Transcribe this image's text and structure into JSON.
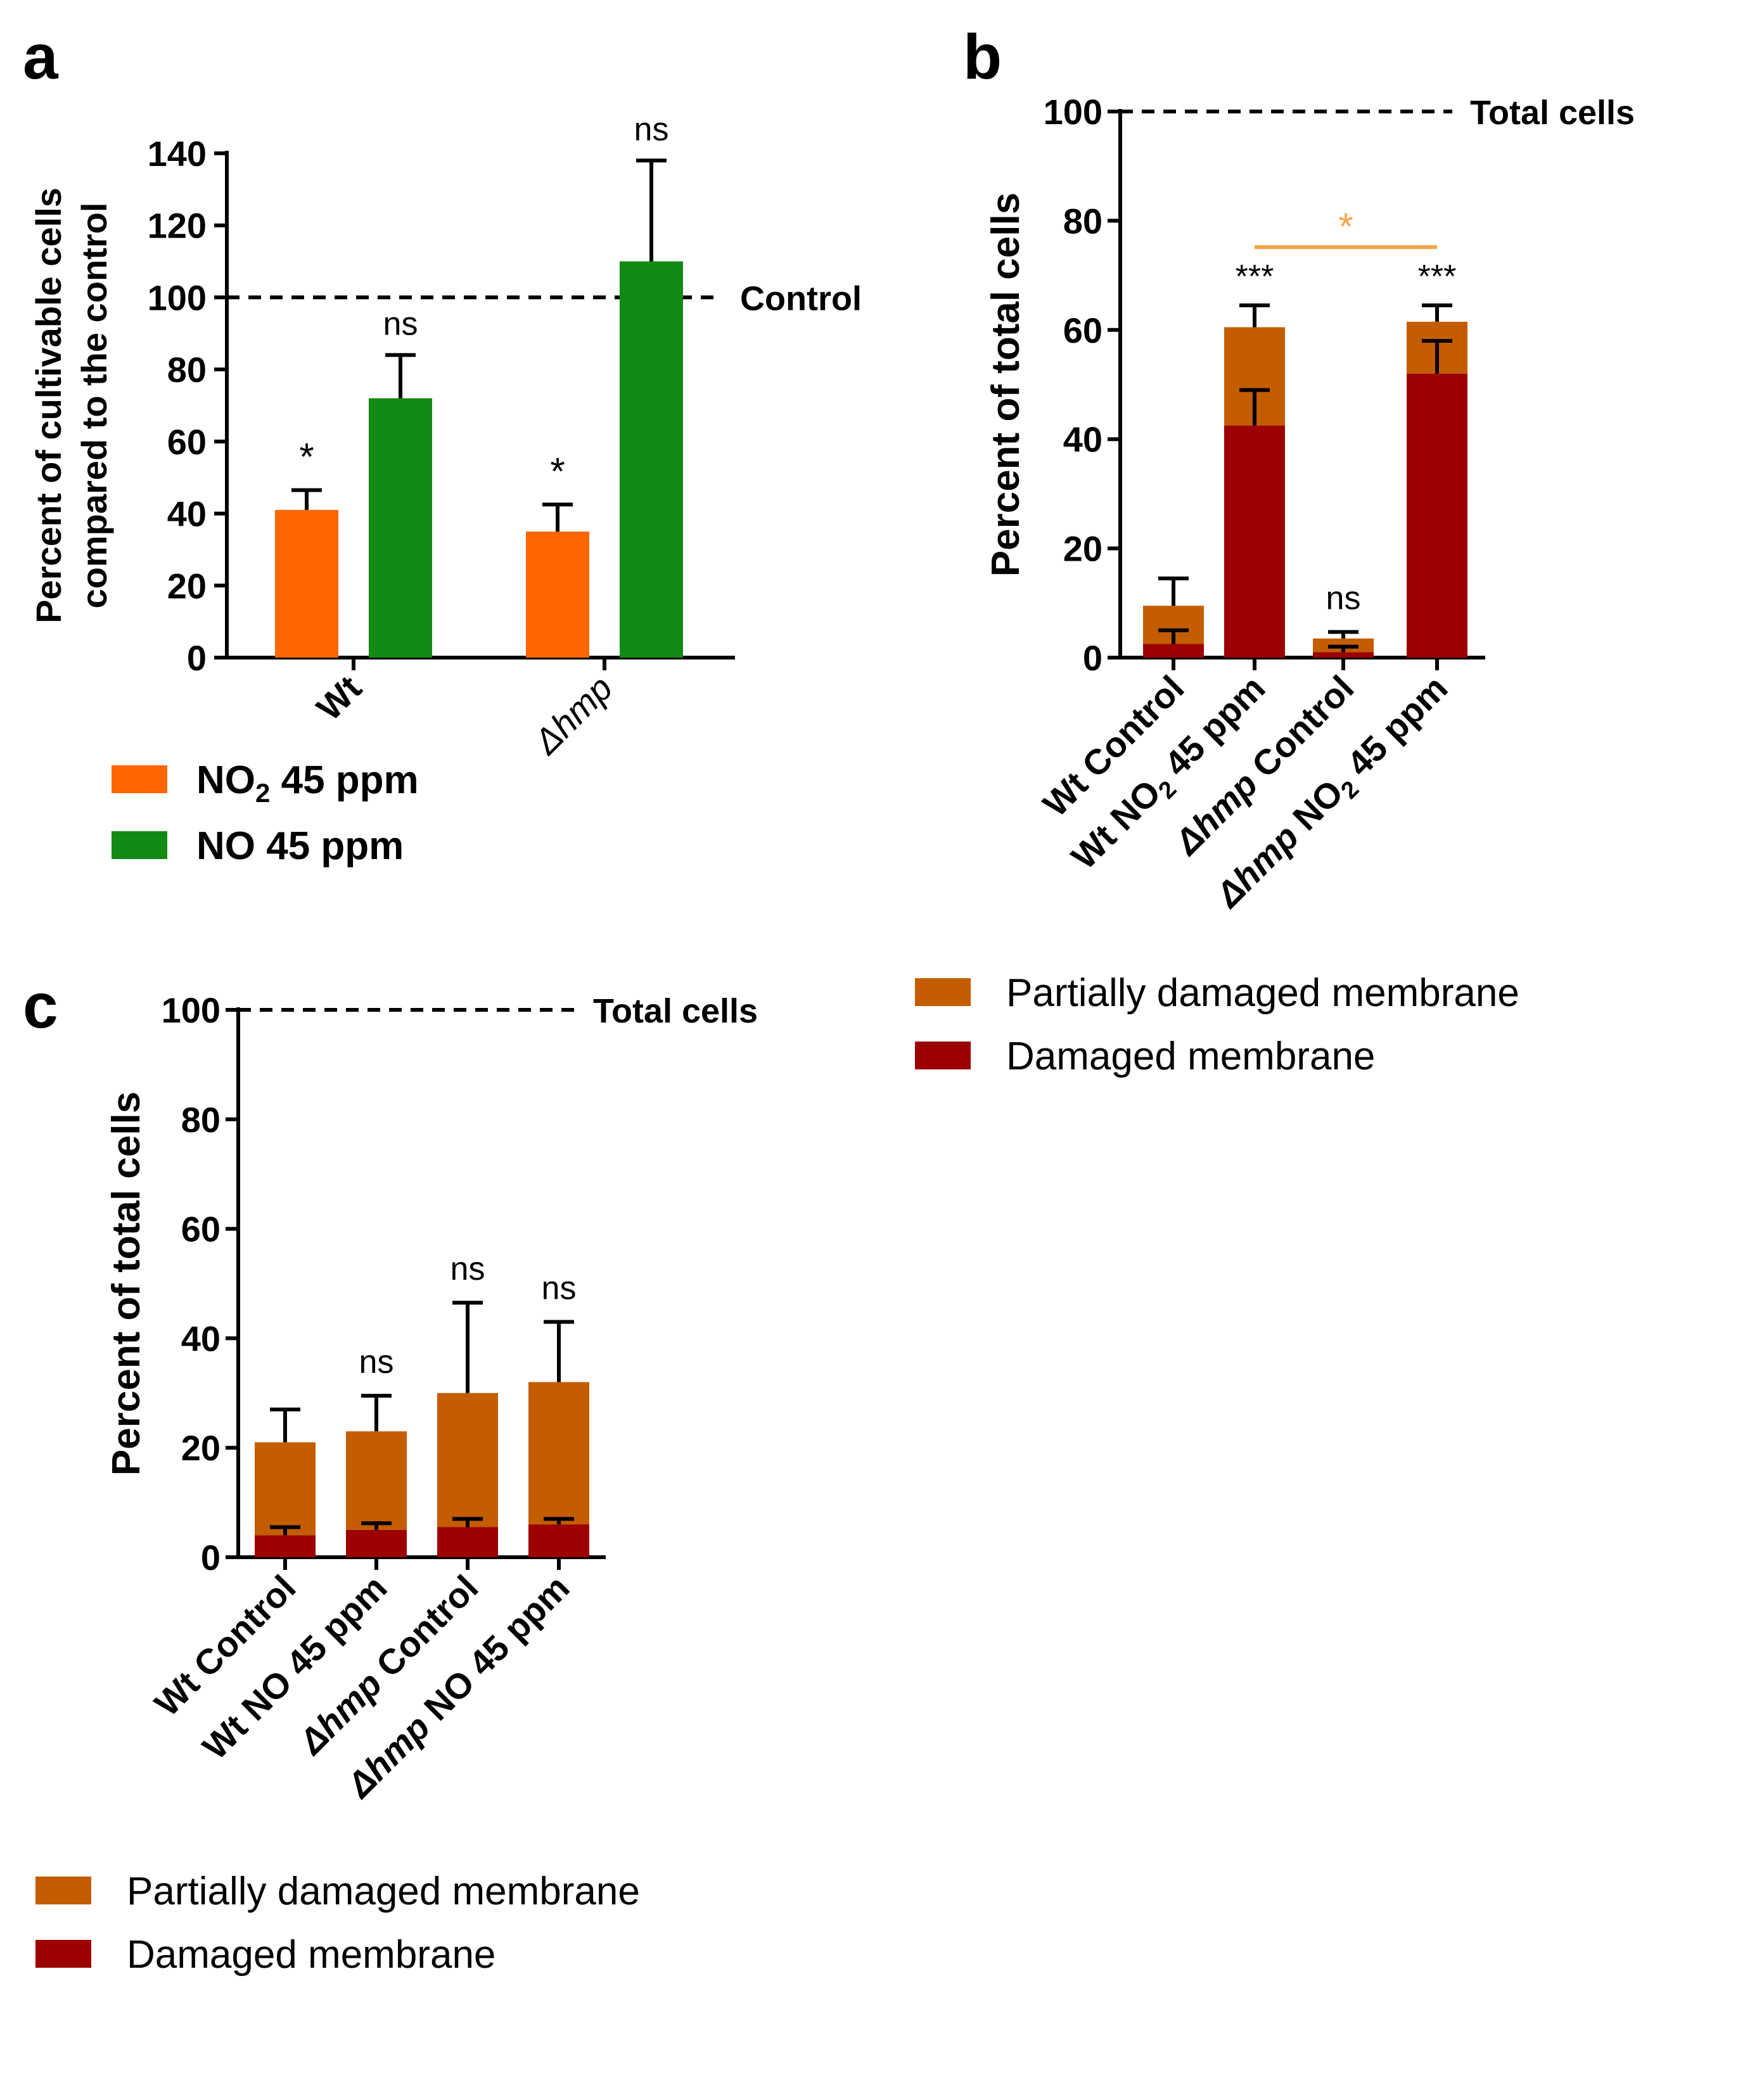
{
  "colors": {
    "orange": "#ff6600",
    "green": "#138a13",
    "partial": "#c45c00",
    "damaged": "#9c0000",
    "sigbar": "#f7a54a",
    "axis": "#000000"
  },
  "chart_data": [
    {
      "panel": "a",
      "type": "bar",
      "categories": [
        "Wt",
        "Δhmp"
      ],
      "ylabel": [
        "Percent of cultivable cells",
        "compared to the control"
      ],
      "ylim": [
        0,
        140
      ],
      "yticks": [
        0,
        20,
        40,
        60,
        80,
        100,
        120,
        140
      ],
      "reference_line": {
        "value": 100,
        "label": "Control"
      },
      "series": [
        {
          "name": "NO2 45 ppm",
          "legend": {
            "pre": "NO",
            "sub": "2",
            "post": " 45 ppm"
          },
          "color": "#ff6600",
          "values": [
            41,
            35
          ],
          "errors": [
            5.5,
            7.5
          ],
          "annotations": [
            "*",
            "*"
          ]
        },
        {
          "name": "NO 45 ppm",
          "legend": {
            "pre": "NO 45 ppm",
            "sub": "",
            "post": ""
          },
          "color": "#138a13",
          "values": [
            72,
            110
          ],
          "errors": [
            12,
            28
          ],
          "annotations": [
            "ns",
            "ns"
          ]
        }
      ]
    },
    {
      "panel": "b",
      "type": "bar",
      "stacked": true,
      "categories": [
        {
          "name": "Wt Control",
          "parts": [
            [
              "Wt Control",
              "n",
              ""
            ]
          ]
        },
        {
          "name": "Wt NO2 45 ppm",
          "parts": [
            [
              "Wt NO",
              "n",
              ""
            ],
            [
              "2",
              "n",
              "sub"
            ],
            [
              " 45 ppm",
              "n",
              ""
            ]
          ]
        },
        {
          "name": "Δhmp Control",
          "parts": [
            [
              "Δhmp",
              "i",
              ""
            ],
            [
              " Control",
              "n",
              ""
            ]
          ]
        },
        {
          "name": "Δhmp NO2 45 ppm",
          "parts": [
            [
              "Δhmp",
              "i",
              ""
            ],
            [
              " NO",
              "n",
              ""
            ],
            [
              "2",
              "n",
              "sub"
            ],
            [
              " 45 ppm",
              "n",
              ""
            ]
          ]
        }
      ],
      "ylabel": "Percent of total cells",
      "ylim": [
        0,
        100
      ],
      "yticks": [
        0,
        20,
        40,
        60,
        80,
        100
      ],
      "reference_line": {
        "value": 100,
        "label": "Total cells"
      },
      "series": [
        {
          "name": "Damaged membrane",
          "color": "#9c0000",
          "values": [
            2.5,
            42.5,
            1,
            52
          ],
          "errors": [
            2.5,
            6.5,
            1,
            6
          ]
        },
        {
          "name": "Partially damaged membrane",
          "color": "#c45c00",
          "values": [
            7,
            18,
            2.5,
            9.5
          ],
          "errors": [
            5,
            4,
            1.2,
            3
          ]
        }
      ],
      "annotations": [
        "",
        "***",
        "ns",
        "***"
      ],
      "comparison": {
        "from": 1,
        "to": 3,
        "label": "*"
      }
    },
    {
      "panel": "c",
      "type": "bar",
      "stacked": true,
      "categories": [
        {
          "name": "Wt Control",
          "parts": [
            [
              "Wt Control",
              "n",
              ""
            ]
          ]
        },
        {
          "name": "Wt NO 45 ppm",
          "parts": [
            [
              "Wt NO 45 ppm",
              "n",
              ""
            ]
          ]
        },
        {
          "name": "Δhmp Control",
          "parts": [
            [
              "Δhmp",
              "i",
              ""
            ],
            [
              " Control",
              "n",
              ""
            ]
          ]
        },
        {
          "name": "Δhmp NO 45 ppm",
          "parts": [
            [
              "Δhmp",
              "i",
              ""
            ],
            [
              " NO 45 ppm",
              "n",
              ""
            ]
          ]
        }
      ],
      "ylabel": "Percent of total cells",
      "ylim": [
        0,
        100
      ],
      "yticks": [
        0,
        20,
        40,
        60,
        80,
        100
      ],
      "reference_line": {
        "value": 100,
        "label": "Total cells"
      },
      "series": [
        {
          "name": "Damaged membrane",
          "color": "#9c0000",
          "values": [
            4,
            5,
            5.5,
            6
          ],
          "errors": [
            1.5,
            1.2,
            1.5,
            1
          ]
        },
        {
          "name": "Partially damaged membrane",
          "color": "#c45c00",
          "values": [
            17,
            18,
            24.5,
            26
          ],
          "errors": [
            6,
            6.5,
            16.5,
            11
          ]
        }
      ],
      "annotations": [
        "",
        "ns",
        "ns",
        "ns"
      ]
    }
  ]
}
